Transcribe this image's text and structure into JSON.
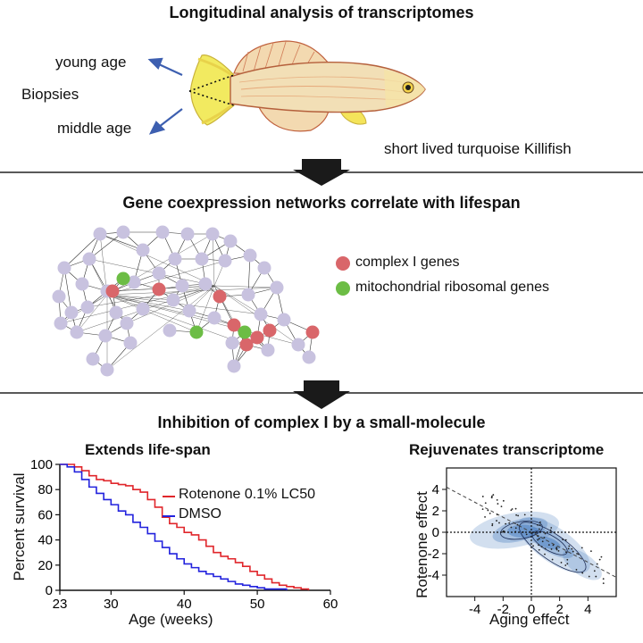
{
  "section1": {
    "title": "Longitudinal analysis of transcriptomes",
    "young_label": "young age",
    "biopsies_label": "Biopsies",
    "middle_label": "middle age",
    "fish_caption": "short lived turquoise Killifish"
  },
  "section2": {
    "title": "Gene coexpression networks correlate with lifespan",
    "legend": [
      {
        "label": "complex I genes",
        "color": "#d9666a"
      },
      {
        "label": "mitochondrial ribosomal genes",
        "color": "#6cbd45"
      }
    ],
    "node_color": "#c8c2df"
  },
  "section3": {
    "title": "Inhibition of complex I by a small-molecule",
    "left_title": "Extends life-span",
    "right_title": "Rejuvenates transcriptome"
  },
  "chart_data": [
    {
      "type": "line",
      "title": "Extends life-span",
      "xlabel": "Age (weeks)",
      "ylabel": "Percent survival",
      "xlim": [
        23,
        60
      ],
      "ylim": [
        0,
        100
      ],
      "xticks": [
        23,
        30,
        40,
        50,
        60
      ],
      "yticks": [
        0,
        20,
        40,
        60,
        80,
        100
      ],
      "series": [
        {
          "name": "Rotenone 0.1% LC50",
          "color": "#e0262b",
          "x": [
            23,
            25,
            26,
            27,
            28,
            29,
            30,
            31,
            32,
            33,
            34,
            35,
            36,
            37,
            38,
            39,
            40,
            41,
            42,
            43,
            44,
            45,
            46,
            47,
            48,
            49,
            50,
            51,
            52,
            53,
            54,
            55,
            56,
            57
          ],
          "y": [
            100,
            98,
            95,
            91,
            88,
            87,
            85,
            84,
            83,
            80,
            78,
            72,
            66,
            58,
            53,
            50,
            46,
            44,
            40,
            35,
            30,
            27,
            25,
            22,
            19,
            15,
            12,
            9,
            6,
            4,
            3,
            2,
            1,
            0
          ]
        },
        {
          "name": "DMSO",
          "color": "#2222dd",
          "x": [
            23,
            24,
            25,
            26,
            27,
            28,
            29,
            30,
            31,
            32,
            33,
            34,
            35,
            36,
            37,
            38,
            39,
            40,
            41,
            42,
            43,
            44,
            45,
            46,
            47,
            48,
            49,
            50,
            51,
            52,
            53,
            54
          ],
          "y": [
            100,
            98,
            94,
            88,
            82,
            77,
            72,
            68,
            63,
            60,
            54,
            50,
            45,
            39,
            34,
            29,
            25,
            21,
            18,
            15,
            13,
            11,
            9,
            7,
            5,
            4,
            3,
            2,
            1,
            1,
            1,
            0
          ]
        }
      ]
    },
    {
      "type": "scatter",
      "title": "Rejuvenates transcriptome",
      "xlabel": "Aging effect",
      "ylabel": "Rotenone effect",
      "xlim": [
        -6,
        6
      ],
      "ylim": [
        -6,
        6
      ],
      "xticks": [
        -4,
        -2,
        0,
        2,
        4
      ],
      "yticks": [
        -4,
        -2,
        0,
        2,
        4
      ],
      "regression": {
        "slope": -0.7,
        "intercept": 0
      },
      "density_centers": [
        {
          "x": -1,
          "y": 0.3,
          "weight": 1.0
        },
        {
          "x": 1.2,
          "y": -1.0,
          "weight": 1.0
        }
      ]
    }
  ]
}
